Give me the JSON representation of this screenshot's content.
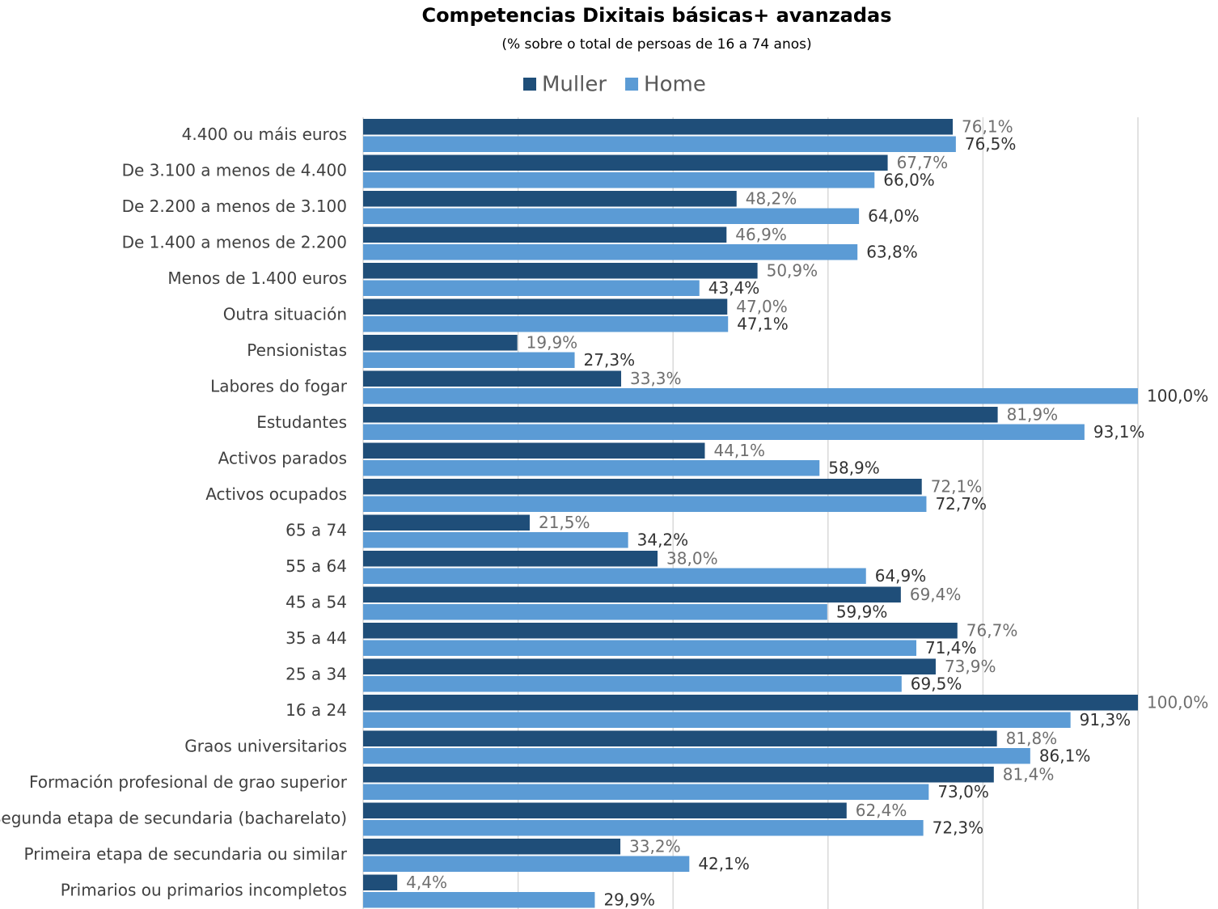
{
  "chart_data": {
    "type": "hbar",
    "title": "Competencias Dixitais básicas+ avanzadas",
    "subtitle": "(% sobre o total de persoas de 16 a 74 anos)",
    "categories": [
      "4.400 ou máis euros",
      "De 3.100 a menos de 4.400",
      "De 2.200 a menos de 3.100",
      "De 1.400 a menos de 2.200",
      "Menos de 1.400 euros",
      "Outra situación",
      "Pensionistas",
      "Labores do fogar",
      "Estudantes",
      "Activos parados",
      "Activos ocupados",
      "65 a 74",
      "55 a 64",
      "45 a 54",
      "35 a 44",
      "25 a 34",
      "16 a 24",
      "Graos universitarios",
      "Formación profesional de grao superior",
      "Segunda etapa de secundaria (bacharelato)",
      "Primeira etapa de secundaria ou similar",
      "Primarios ou primarios incompletos"
    ],
    "series": [
      {
        "name": "Muller",
        "color": "#1f4e79",
        "values": [
          76.1,
          67.7,
          48.2,
          46.9,
          50.9,
          47.0,
          19.9,
          33.3,
          81.9,
          44.1,
          72.1,
          21.5,
          38.0,
          69.4,
          76.7,
          73.9,
          100.0,
          81.8,
          81.4,
          62.4,
          33.2,
          4.4
        ],
        "value_labels": [
          "76,1%",
          "67,7%",
          "48,2%",
          "46,9%",
          "50,9%",
          "47,0%",
          "19,9%",
          "33,3%",
          "81,9%",
          "44,1%",
          "72,1%",
          "21,5%",
          "38,0%",
          "69,4%",
          "76,7%",
          "73,9%",
          "100,0%",
          "81,8%",
          "81,4%",
          "62,4%",
          "33,2%",
          "4,4%"
        ]
      },
      {
        "name": "Home",
        "color": "#5b9bd5",
        "values": [
          76.5,
          66.0,
          64.0,
          63.8,
          43.4,
          47.1,
          27.3,
          100.0,
          93.1,
          58.9,
          72.7,
          34.2,
          64.9,
          59.9,
          71.4,
          69.5,
          91.3,
          86.1,
          73.0,
          72.3,
          42.1,
          29.9
        ],
        "value_labels": [
          "76,5%",
          "66,0%",
          "64,0%",
          "63,8%",
          "43,4%",
          "47,1%",
          "27,3%",
          "100,0%",
          "93,1%",
          "58,9%",
          "72,7%",
          "34,2%",
          "64,9%",
          "59,9%",
          "71,4%",
          "69,5%",
          "91,3%",
          "86,1%",
          "73,0%",
          "72,3%",
          "42,1%",
          "29,9%"
        ]
      }
    ],
    "xlim": [
      0,
      100
    ],
    "xticks": [
      0,
      20,
      40,
      60,
      80,
      100
    ],
    "grid": true,
    "legend": "top"
  }
}
